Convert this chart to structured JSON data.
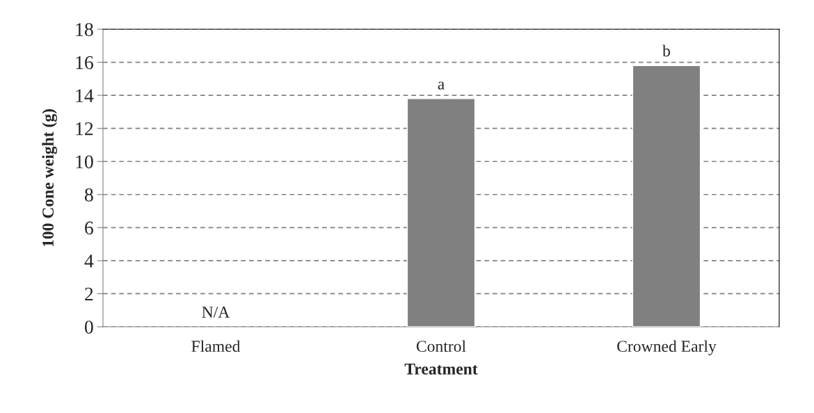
{
  "chart_data": {
    "type": "bar",
    "xlabel": "Treatment",
    "ylabel": "100 Cone weight (g)",
    "categories": [
      "Flamed",
      "Control",
      "Crowned Early"
    ],
    "values": [
      null,
      13.8,
      15.8
    ],
    "value_labels": [
      "N/A",
      "a",
      "b"
    ],
    "color": "#808080",
    "ylim": [
      0,
      18
    ],
    "yticks": [
      0,
      2,
      4,
      6,
      8,
      10,
      12,
      14,
      16,
      18
    ],
    "grid": "y"
  }
}
